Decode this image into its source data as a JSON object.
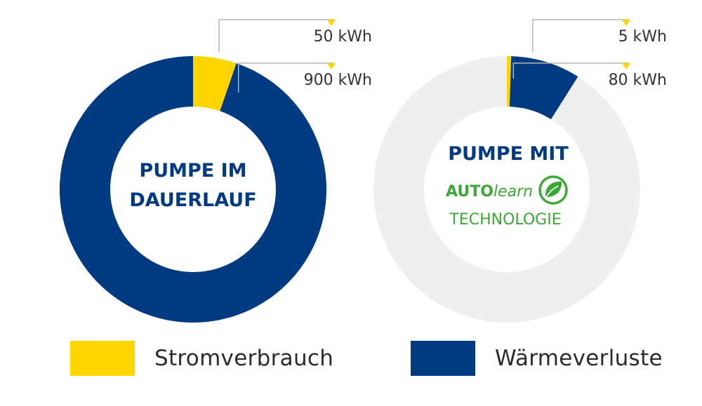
{
  "colors": {
    "strom": "#FFD400",
    "waerme": "#003A80",
    "empty_ring": "#EFEFEF",
    "connector": "#B5B5B5",
    "center_text": "#003A80",
    "autolearn_green": "#3AA935"
  },
  "chart_data": [
    {
      "type": "pie",
      "categories": [
        "Stromverbrauch",
        "Wärmeverluste"
      ],
      "values": [
        50,
        900
      ],
      "unit": "kWh",
      "scale_total": 950,
      "labels": [
        "50 kWh",
        "900 kWh"
      ],
      "center_lines": [
        "PUMPE IM",
        "DAUERLAUF"
      ]
    },
    {
      "type": "pie",
      "categories": [
        "Stromverbrauch",
        "Wärmeverluste"
      ],
      "values": [
        5,
        80
      ],
      "unit": "kWh",
      "scale_total": 950,
      "labels": [
        "5 kWh",
        "80 kWh"
      ],
      "center_lines": [
        "PUMPE MIT"
      ],
      "logo_text": "AUTOlearn",
      "logo_icon": "leaf-icon",
      "center_sub": "TECHNOLOGIE"
    }
  ],
  "legend": [
    {
      "label": "Stromverbrauch",
      "color": "#FFD400"
    },
    {
      "label": "Wärmeverluste",
      "color": "#003A80"
    }
  ]
}
